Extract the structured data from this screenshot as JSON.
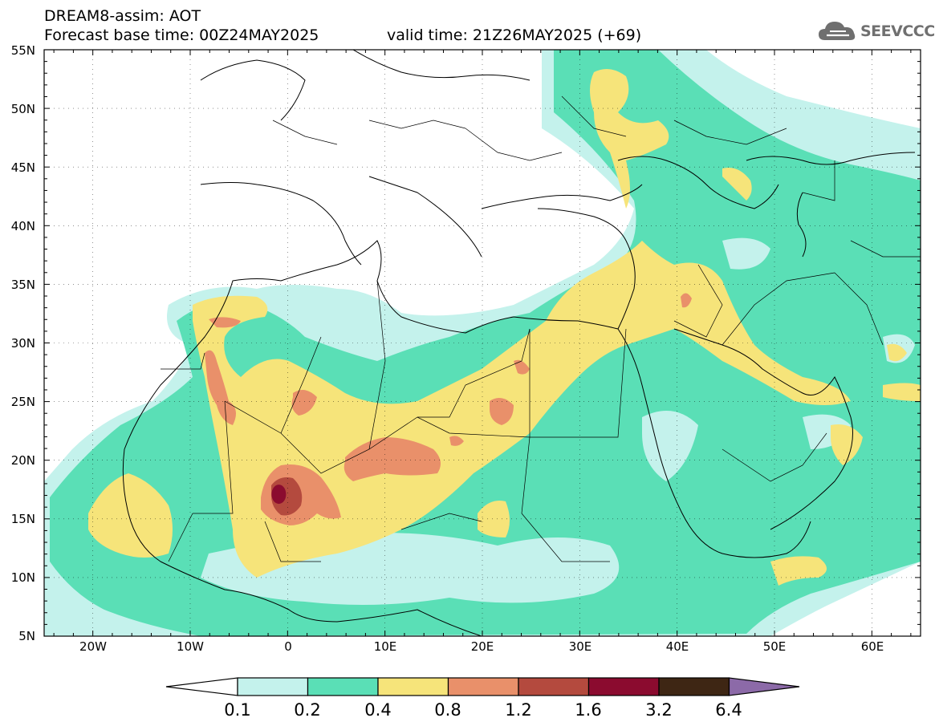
{
  "header": {
    "product": "DREAM8-assim: AOT",
    "base_time": "Forecast base time: 00Z24MAY2025",
    "valid_time": "valid time: 21Z26MAY2025 (+69)"
  },
  "logo": {
    "icon": "cloud-icon",
    "text": "SEEVCCC"
  },
  "map": {
    "projection": "lat-lon",
    "lon_range": [
      -25,
      65
    ],
    "lat_range": [
      5,
      55
    ],
    "lat_labels": [
      "55N",
      "50N",
      "45N",
      "40N",
      "35N",
      "30N",
      "25N",
      "20N",
      "15N",
      "10N",
      "5N"
    ],
    "lon_labels": [
      "20W",
      "10W",
      "0",
      "10E",
      "20E",
      "30E",
      "40E",
      "50E",
      "60E"
    ],
    "hot_spot": {
      "lon": -0.9,
      "lat": 17.1,
      "category": "3.2"
    }
  },
  "colorbar": {
    "levels": [
      "0.1",
      "0.2",
      "0.4",
      "0.8",
      "1.2",
      "1.6",
      "3.2",
      "6.4"
    ],
    "colors": [
      "#ffffff",
      "#c4f2ec",
      "#5adfb6",
      "#f6e47a",
      "#e9906a",
      "#b44a3e",
      "#8b0b2f",
      "#3e2614",
      "#8c6aa8"
    ]
  }
}
